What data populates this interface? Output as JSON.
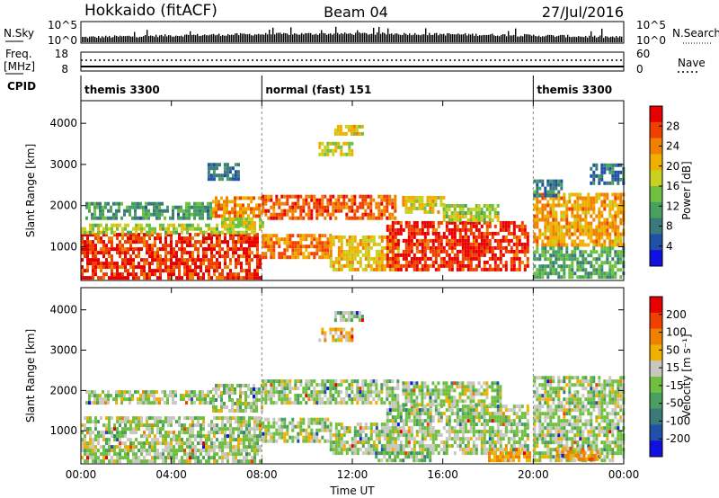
{
  "header": {
    "station": "Hokkaido (fitACF)",
    "beam": "Beam 04",
    "date": "27/Jul/2016"
  },
  "strips": {
    "nsky_label": "N.Sky",
    "nsky_ticks": [
      "10^5",
      "10^0"
    ],
    "nsearch_label": "N.Search",
    "freq_label_1": "Freq.",
    "freq_label_2": "[MHz]",
    "freq_ticks": [
      "18",
      "8"
    ],
    "nave_label": "Nave",
    "nave_ticks": [
      "60",
      "0"
    ],
    "cpid_label": "CPID",
    "cpid_segments": [
      {
        "label": "themis 3300",
        "start": 0,
        "end": 8
      },
      {
        "label": "normal (fast) 151",
        "start": 8,
        "end": 20
      },
      {
        "label": "themis 3300",
        "start": 20,
        "end": 24
      }
    ]
  },
  "chart_data": [
    {
      "type": "heatmap",
      "panel": "power",
      "ylabel": "Slant Range [km]",
      "yticks": [
        1000,
        2000,
        3000,
        4000
      ],
      "ylim": [
        180,
        4550
      ],
      "xlim": [
        0,
        24
      ],
      "colorbar_label": "Power [dB]",
      "colorbar_ticks": [
        "28",
        "24",
        "20",
        "16",
        "12",
        "8",
        "4"
      ],
      "colorscale": [
        "#1010e0",
        "#2050a8",
        "#3a7a78",
        "#48a060",
        "#70c040",
        "#c8d020",
        "#f0b000",
        "#f08000",
        "#f04000",
        "#e80000"
      ],
      "regions": [
        {
          "t0": 0.0,
          "t1": 7.9,
          "r0": 200,
          "r1": 1300,
          "level": 0.93
        },
        {
          "t0": 0.0,
          "t1": 7.9,
          "r0": 1300,
          "r1": 1500,
          "level": 0.5
        },
        {
          "t0": 0.2,
          "t1": 5.8,
          "r0": 1650,
          "r1": 2000,
          "level": 0.3
        },
        {
          "t0": 5.6,
          "t1": 7.0,
          "r0": 2600,
          "r1": 3000,
          "level": 0.2
        },
        {
          "t0": 5.8,
          "t1": 8.0,
          "r0": 1700,
          "r1": 2150,
          "level": 0.75
        },
        {
          "t0": 6.2,
          "t1": 8.0,
          "r0": 1450,
          "r1": 1700,
          "level": 0.55
        },
        {
          "t0": 8.0,
          "t1": 13.9,
          "r0": 1650,
          "r1": 2250,
          "level": 0.85
        },
        {
          "t0": 8.0,
          "t1": 11.0,
          "r0": 700,
          "r1": 1250,
          "level": 0.8
        },
        {
          "t0": 11.0,
          "t1": 14.0,
          "r0": 400,
          "r1": 1200,
          "level": 0.65
        },
        {
          "t0": 10.5,
          "t1": 12.0,
          "r0": 3200,
          "r1": 3500,
          "level": 0.55
        },
        {
          "t0": 11.2,
          "t1": 12.5,
          "r0": 3700,
          "r1": 3950,
          "level": 0.6
        },
        {
          "t0": 13.5,
          "t1": 19.7,
          "r0": 400,
          "r1": 1600,
          "level": 0.95
        },
        {
          "t0": 14.2,
          "t1": 16.0,
          "r0": 1800,
          "r1": 2200,
          "level": 0.6
        },
        {
          "t0": 16.0,
          "t1": 18.5,
          "r0": 1600,
          "r1": 2000,
          "level": 0.5
        },
        {
          "t0": 20.0,
          "t1": 24.0,
          "r0": 1000,
          "r1": 2300,
          "level": 0.72
        },
        {
          "t0": 20.0,
          "t1": 24.0,
          "r0": 220,
          "r1": 1000,
          "level": 0.35
        },
        {
          "t0": 20.0,
          "t1": 21.2,
          "r0": 2200,
          "r1": 2600,
          "level": 0.25
        },
        {
          "t0": 22.5,
          "t1": 24.0,
          "r0": 2500,
          "r1": 3000,
          "level": 0.2
        }
      ]
    },
    {
      "type": "heatmap",
      "panel": "velocity",
      "ylabel": "Slant Range [km]",
      "yticks": [
        1000,
        2000,
        3000,
        4000
      ],
      "ylim": [
        180,
        4550
      ],
      "xlim": [
        0,
        24
      ],
      "xticks": [
        "00:00",
        "04:00",
        "08:00",
        "12:00",
        "16:00",
        "20:00",
        "00:00"
      ],
      "xlabel": "Time UT",
      "colorbar_label": "Velocity [m s⁻¹]",
      "colorbar_ticks": [
        "200",
        "100",
        "50",
        "15",
        "-15",
        "-50",
        "-100",
        "-200"
      ],
      "colorscale": [
        "#1010e0",
        "#2050a8",
        "#3a7a78",
        "#48a060",
        "#70c040",
        "#c8c8c0",
        "#f0b000",
        "#f08000",
        "#f04000",
        "#e80000"
      ],
      "regions": [
        {
          "t0": 0.0,
          "t1": 7.9,
          "r0": 200,
          "r1": 1300,
          "level": 0.5
        },
        {
          "t0": 0.2,
          "t1": 5.8,
          "r0": 1650,
          "r1": 2000,
          "level": 0.5
        },
        {
          "t0": 5.8,
          "t1": 8.0,
          "r0": 1450,
          "r1": 2150,
          "level": 0.5
        },
        {
          "t0": 8.0,
          "t1": 14.0,
          "r0": 1650,
          "r1": 2250,
          "level": 0.5
        },
        {
          "t0": 8.0,
          "t1": 11.0,
          "r0": 700,
          "r1": 1250,
          "level": 0.5
        },
        {
          "t0": 11.0,
          "t1": 14.0,
          "r0": 400,
          "r1": 1200,
          "level": 0.5
        },
        {
          "t0": 10.5,
          "t1": 12.0,
          "r0": 3200,
          "r1": 3500,
          "level": 0.62
        },
        {
          "t0": 11.2,
          "t1": 12.5,
          "r0": 3700,
          "r1": 3950,
          "level": 0.45
        },
        {
          "t0": 13.5,
          "t1": 19.7,
          "r0": 400,
          "r1": 1600,
          "level": 0.5
        },
        {
          "t0": 14.2,
          "t1": 18.5,
          "r0": 1600,
          "r1": 2200,
          "level": 0.5
        },
        {
          "t0": 20.0,
          "t1": 24.0,
          "r0": 220,
          "r1": 2300,
          "level": 0.5
        },
        {
          "t0": 18.0,
          "t1": 19.8,
          "r0": 220,
          "r1": 500,
          "level": 0.7
        },
        {
          "t0": 21.0,
          "t1": 23.0,
          "r0": 250,
          "r1": 550,
          "level": 0.72
        },
        {
          "t0": 13.0,
          "t1": 15.5,
          "r0": 220,
          "r1": 420,
          "level": 0.4
        }
      ]
    }
  ]
}
